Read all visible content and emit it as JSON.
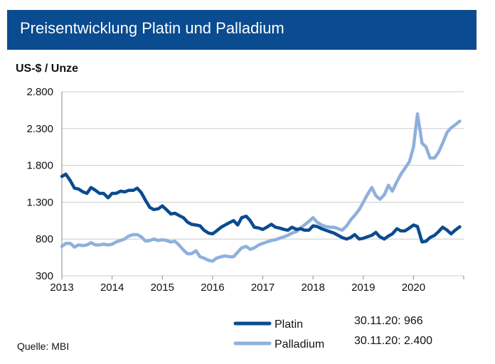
{
  "header": {
    "title": "Preisentwicklung Platin und Palladium"
  },
  "source": "Quelle: MBI",
  "colors": {
    "header_bg": "#0b4b8f",
    "platin": "#0b4b8f",
    "palladium": "#8fb0dc",
    "grid": "#cccccc"
  },
  "chart_data": {
    "type": "line",
    "ylabel": "US-$ / Unze",
    "ylim": [
      300,
      2800
    ],
    "yticks": [
      300,
      800,
      1300,
      1800,
      2300,
      2800
    ],
    "ytick_labels": [
      "300",
      "800",
      "1.300",
      "1.800",
      "2.300",
      "2.800"
    ],
    "xlim": [
      2013,
      2021
    ],
    "xticks": [
      2013,
      2014,
      2015,
      2016,
      2017,
      2018,
      2019,
      2020
    ],
    "xtick_labels": [
      "2013",
      "2014",
      "2015",
      "2016",
      "2017",
      "2018",
      "2019",
      "2020"
    ],
    "grid": true,
    "legend": "bottom",
    "series": [
      {
        "name": "Platin",
        "color": "#0b4b8f",
        "annotation": "30.11.20: 966",
        "x": [
          2013.0,
          2013.08,
          2013.17,
          2013.25,
          2013.33,
          2013.42,
          2013.5,
          2013.58,
          2013.67,
          2013.75,
          2013.83,
          2013.92,
          2014.0,
          2014.08,
          2014.17,
          2014.25,
          2014.33,
          2014.42,
          2014.5,
          2014.58,
          2014.67,
          2014.75,
          2014.83,
          2014.92,
          2015.0,
          2015.08,
          2015.17,
          2015.25,
          2015.33,
          2015.42,
          2015.5,
          2015.58,
          2015.67,
          2015.75,
          2015.83,
          2015.92,
          2016.0,
          2016.08,
          2016.17,
          2016.25,
          2016.33,
          2016.42,
          2016.5,
          2016.58,
          2016.67,
          2016.75,
          2016.83,
          2016.92,
          2017.0,
          2017.08,
          2017.17,
          2017.25,
          2017.33,
          2017.42,
          2017.5,
          2017.58,
          2017.67,
          2017.75,
          2017.83,
          2017.92,
          2018.0,
          2018.08,
          2018.17,
          2018.25,
          2018.33,
          2018.42,
          2018.5,
          2018.58,
          2018.67,
          2018.75,
          2018.83,
          2018.92,
          2019.0,
          2019.08,
          2019.17,
          2019.25,
          2019.33,
          2019.42,
          2019.5,
          2019.58,
          2019.67,
          2019.75,
          2019.83,
          2019.92,
          2020.0,
          2020.08,
          2020.17,
          2020.25,
          2020.33,
          2020.42,
          2020.5,
          2020.58,
          2020.67,
          2020.75,
          2020.83,
          2020.92
        ],
        "values": [
          1650,
          1680,
          1590,
          1490,
          1480,
          1440,
          1420,
          1500,
          1460,
          1420,
          1420,
          1360,
          1420,
          1420,
          1450,
          1440,
          1460,
          1460,
          1490,
          1430,
          1320,
          1230,
          1200,
          1210,
          1250,
          1200,
          1140,
          1150,
          1120,
          1090,
          1030,
          1000,
          990,
          980,
          920,
          880,
          870,
          910,
          960,
          990,
          1020,
          1050,
          990,
          1090,
          1110,
          1050,
          960,
          950,
          930,
          960,
          1000,
          960,
          950,
          930,
          920,
          960,
          930,
          940,
          920,
          920,
          980,
          970,
          940,
          920,
          900,
          880,
          850,
          820,
          800,
          820,
          860,
          800,
          810,
          830,
          850,
          890,
          830,
          800,
          840,
          870,
          940,
          910,
          910,
          950,
          990,
          970,
          760,
          770,
          820,
          850,
          900,
          960,
          920,
          870,
          920,
          966
        ]
      },
      {
        "name": "Palladium",
        "color": "#8fb0dc",
        "annotation": "30.11.20: 2.400",
        "x": [
          2013.0,
          2013.08,
          2013.17,
          2013.25,
          2013.33,
          2013.42,
          2013.5,
          2013.58,
          2013.67,
          2013.75,
          2013.83,
          2013.92,
          2014.0,
          2014.08,
          2014.17,
          2014.25,
          2014.33,
          2014.42,
          2014.5,
          2014.58,
          2014.67,
          2014.75,
          2014.83,
          2014.92,
          2015.0,
          2015.08,
          2015.17,
          2015.25,
          2015.33,
          2015.42,
          2015.5,
          2015.58,
          2015.67,
          2015.75,
          2015.83,
          2015.92,
          2016.0,
          2016.08,
          2016.17,
          2016.25,
          2016.33,
          2016.42,
          2016.5,
          2016.58,
          2016.67,
          2016.75,
          2016.83,
          2016.92,
          2017.0,
          2017.08,
          2017.17,
          2017.25,
          2017.33,
          2017.42,
          2017.5,
          2017.58,
          2017.67,
          2017.75,
          2017.83,
          2017.92,
          2018.0,
          2018.08,
          2018.17,
          2018.25,
          2018.33,
          2018.42,
          2018.5,
          2018.58,
          2018.67,
          2018.75,
          2018.83,
          2018.92,
          2019.0,
          2019.08,
          2019.17,
          2019.25,
          2019.33,
          2019.42,
          2019.5,
          2019.58,
          2019.67,
          2019.75,
          2019.83,
          2019.92,
          2020.0,
          2020.08,
          2020.17,
          2020.25,
          2020.33,
          2020.42,
          2020.5,
          2020.58,
          2020.67,
          2020.75,
          2020.83,
          2020.92
        ],
        "values": [
          700,
          740,
          740,
          690,
          720,
          710,
          720,
          750,
          720,
          720,
          730,
          720,
          730,
          760,
          780,
          800,
          840,
          860,
          860,
          830,
          770,
          780,
          800,
          780,
          790,
          780,
          760,
          770,
          720,
          650,
          600,
          600,
          640,
          560,
          540,
          510,
          500,
          540,
          560,
          570,
          560,
          560,
          620,
          680,
          700,
          660,
          680,
          720,
          740,
          760,
          780,
          790,
          810,
          830,
          850,
          880,
          900,
          950,
          990,
          1040,
          1090,
          1030,
          990,
          970,
          960,
          960,
          940,
          920,
          980,
          1060,
          1120,
          1200,
          1300,
          1400,
          1500,
          1390,
          1340,
          1400,
          1530,
          1450,
          1580,
          1680,
          1760,
          1850,
          2050,
          2500,
          2100,
          2050,
          1900,
          1900,
          1980,
          2100,
          2250,
          2310,
          2350,
          2400
        ]
      }
    ]
  }
}
